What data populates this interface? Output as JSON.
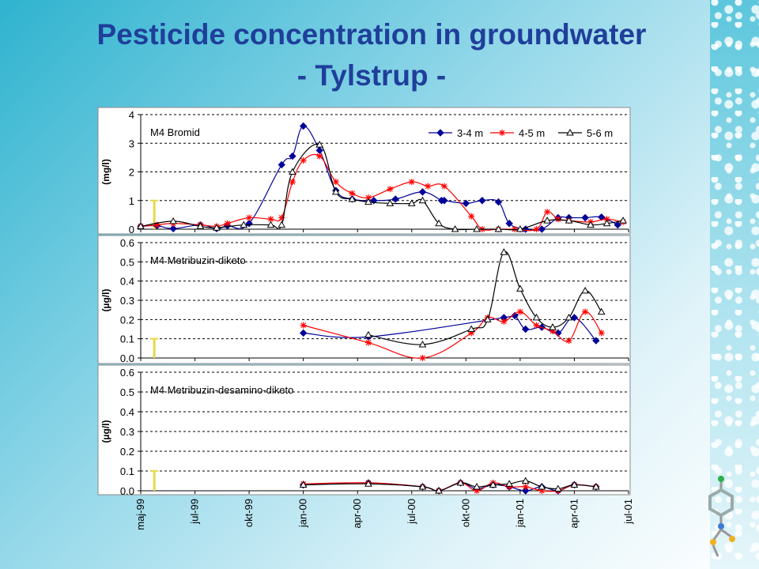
{
  "title_line1": "Pesticide concentration in groundwater",
  "title_line2": "- Tylstrup -",
  "colors": {
    "title": "#1f3f9a",
    "series_3_4": "#000099",
    "series_4_5": "#ff0000",
    "series_5_6": "#000000",
    "marker_bar": "#e6d84a"
  },
  "x_tick_labels": [
    "maj-99",
    "jul-99",
    "okt-99",
    "jan-00",
    "apr-00",
    "jul-00",
    "okt-00",
    "jan-01",
    "apr-01",
    "jul-01"
  ],
  "chart_data": [
    {
      "type": "line",
      "panel_label": "M4  Bromid",
      "ylabel": "(mg/l)",
      "ylim": [
        0,
        4
      ],
      "yticks": [
        "0",
        "1",
        "2",
        "3",
        "4"
      ],
      "legend": [
        "3-4 m",
        "4-5 m",
        "5-6 m"
      ],
      "indicator": 1.0,
      "series": [
        {
          "name": "3-4 m",
          "marker": "diamond",
          "points": [
            [
              0.0,
              0.1
            ],
            [
              0.3,
              0.12
            ],
            [
              0.6,
              0.02
            ],
            [
              1.1,
              0.15
            ],
            [
              1.4,
              0.02
            ],
            [
              1.6,
              0.12
            ],
            [
              2.0,
              0.2
            ],
            [
              2.6,
              2.25
            ],
            [
              2.8,
              2.55
            ],
            [
              3.0,
              3.6
            ],
            [
              3.3,
              2.75
            ],
            [
              3.6,
              1.35
            ],
            [
              3.9,
              1.05
            ],
            [
              4.3,
              1.0
            ],
            [
              4.7,
              1.05
            ],
            [
              5.2,
              1.3
            ],
            [
              5.55,
              1.0
            ],
            [
              5.6,
              1.0
            ],
            [
              6.0,
              0.9
            ],
            [
              6.3,
              1.0
            ],
            [
              6.6,
              0.95
            ],
            [
              6.8,
              0.2
            ],
            [
              7.1,
              0.0
            ],
            [
              7.4,
              0.0
            ],
            [
              7.7,
              0.4
            ],
            [
              7.9,
              0.4
            ],
            [
              8.2,
              0.4
            ],
            [
              8.5,
              0.42
            ],
            [
              8.8,
              0.15
            ]
          ]
        },
        {
          "name": "4-5 m",
          "marker": "star",
          "points": [
            [
              0.0,
              0.1
            ],
            [
              0.3,
              0.15
            ],
            [
              0.6,
              0.2
            ],
            [
              1.1,
              0.15
            ],
            [
              1.4,
              0.1
            ],
            [
              1.6,
              0.2
            ],
            [
              2.0,
              0.4
            ],
            [
              2.4,
              0.35
            ],
            [
              2.6,
              0.4
            ],
            [
              2.8,
              1.65
            ],
            [
              3.0,
              2.4
            ],
            [
              3.3,
              2.55
            ],
            [
              3.6,
              1.65
            ],
            [
              3.9,
              1.25
            ],
            [
              4.2,
              1.1
            ],
            [
              4.6,
              1.4
            ],
            [
              5.0,
              1.65
            ],
            [
              5.3,
              1.5
            ],
            [
              5.6,
              1.5
            ],
            [
              6.1,
              0.45
            ],
            [
              6.3,
              0.0
            ],
            [
              6.6,
              0.0
            ],
            [
              6.9,
              0.0
            ],
            [
              7.3,
              0.0
            ],
            [
              7.5,
              0.6
            ],
            [
              7.7,
              0.35
            ],
            [
              7.9,
              0.3
            ],
            [
              8.3,
              0.25
            ],
            [
              8.6,
              0.35
            ],
            [
              8.9,
              0.25
            ]
          ]
        },
        {
          "name": "5-6 m",
          "marker": "triangle",
          "points": [
            [
              0.0,
              0.1
            ],
            [
              0.6,
              0.28
            ],
            [
              1.1,
              0.1
            ],
            [
              1.4,
              0.05
            ],
            [
              1.9,
              0.15
            ],
            [
              2.4,
              0.15
            ],
            [
              2.6,
              0.15
            ],
            [
              2.8,
              2.0
            ],
            [
              3.3,
              2.95
            ],
            [
              3.6,
              1.3
            ],
            [
              3.9,
              1.05
            ],
            [
              4.2,
              0.95
            ],
            [
              4.6,
              0.9
            ],
            [
              5.0,
              0.9
            ],
            [
              5.2,
              1.0
            ],
            [
              5.5,
              0.2
            ],
            [
              5.8,
              0.0
            ],
            [
              6.2,
              0.0
            ],
            [
              6.6,
              0.0
            ],
            [
              7.0,
              0.0
            ],
            [
              7.5,
              0.3
            ],
            [
              7.9,
              0.3
            ],
            [
              8.3,
              0.15
            ],
            [
              8.6,
              0.2
            ],
            [
              8.9,
              0.3
            ]
          ]
        }
      ]
    },
    {
      "type": "line",
      "panel_label": "M4 Metribuzin-diketo",
      "ylabel": "(µg/l)",
      "ylim": [
        0,
        0.6
      ],
      "yticks": [
        "0.0",
        "0.1",
        "0.2",
        "0.3",
        "0.4",
        "0.5",
        "0.6"
      ],
      "indicator": 0.1,
      "series": [
        {
          "name": "3-4 m",
          "marker": "diamond",
          "points": [
            [
              3.0,
              0.13
            ],
            [
              4.2,
              0.11
            ],
            [
              6.7,
              0.21
            ],
            [
              6.9,
              0.22
            ],
            [
              7.1,
              0.15
            ],
            [
              7.4,
              0.16
            ],
            [
              7.7,
              0.13
            ],
            [
              8.0,
              0.21
            ],
            [
              8.4,
              0.09
            ]
          ]
        },
        {
          "name": "4-5 m",
          "marker": "star",
          "points": [
            [
              3.0,
              0.17
            ],
            [
              4.2,
              0.08
            ],
            [
              5.2,
              0.0
            ],
            [
              6.1,
              0.13
            ],
            [
              6.4,
              0.21
            ],
            [
              6.7,
              0.19
            ],
            [
              7.0,
              0.24
            ],
            [
              7.3,
              0.17
            ],
            [
              7.6,
              0.14
            ],
            [
              7.9,
              0.09
            ],
            [
              8.2,
              0.24
            ],
            [
              8.5,
              0.13
            ]
          ]
        },
        {
          "name": "5-6 m",
          "marker": "triangle",
          "points": [
            [
              4.2,
              0.12
            ],
            [
              5.2,
              0.07
            ],
            [
              6.1,
              0.15
            ],
            [
              6.4,
              0.2
            ],
            [
              6.7,
              0.55
            ],
            [
              7.0,
              0.36
            ],
            [
              7.3,
              0.21
            ],
            [
              7.6,
              0.16
            ],
            [
              7.9,
              0.21
            ],
            [
              8.2,
              0.35
            ],
            [
              8.5,
              0.24
            ]
          ]
        }
      ]
    },
    {
      "type": "line",
      "panel_label": "M4 Metribuzin-desamino-diketo",
      "ylabel": "(µg/l)",
      "ylim": [
        0,
        0.6
      ],
      "yticks": [
        "0.0",
        "0.1",
        "0.2",
        "0.3",
        "0.4",
        "0.5",
        "0.6"
      ],
      "indicator": 0.1,
      "series": [
        {
          "name": "3-4 m",
          "marker": "diamond",
          "points": [
            [
              3.0,
              0.03
            ],
            [
              4.2,
              0.04
            ],
            [
              5.2,
              0.02
            ],
            [
              5.5,
              0.0
            ],
            [
              5.9,
              0.04
            ],
            [
              6.2,
              0.01
            ],
            [
              6.5,
              0.03
            ],
            [
              6.8,
              0.02
            ],
            [
              7.1,
              0.0
            ],
            [
              7.4,
              0.02
            ],
            [
              7.7,
              0.0
            ],
            [
              8.0,
              0.03
            ],
            [
              8.4,
              0.02
            ]
          ]
        },
        {
          "name": "4-5 m",
          "marker": "star",
          "points": [
            [
              3.0,
              0.035
            ],
            [
              4.2,
              0.04
            ],
            [
              5.2,
              0.02
            ],
            [
              5.5,
              0.0
            ],
            [
              5.9,
              0.04
            ],
            [
              6.2,
              0.0
            ],
            [
              6.5,
              0.04
            ],
            [
              6.8,
              0.02
            ],
            [
              7.1,
              0.02
            ],
            [
              7.4,
              0.0
            ],
            [
              7.7,
              0.0
            ],
            [
              8.0,
              0.03
            ],
            [
              8.4,
              0.02
            ]
          ]
        },
        {
          "name": "5-6 m",
          "marker": "triangle",
          "points": [
            [
              3.0,
              0.03
            ],
            [
              4.2,
              0.035
            ],
            [
              5.2,
              0.02
            ],
            [
              5.5,
              0.0
            ],
            [
              5.9,
              0.04
            ],
            [
              6.2,
              0.02
            ],
            [
              6.5,
              0.03
            ],
            [
              6.8,
              0.035
            ],
            [
              7.1,
              0.05
            ],
            [
              7.4,
              0.02
            ],
            [
              7.7,
              0.01
            ],
            [
              8.0,
              0.03
            ],
            [
              8.4,
              0.02
            ]
          ]
        }
      ]
    }
  ]
}
